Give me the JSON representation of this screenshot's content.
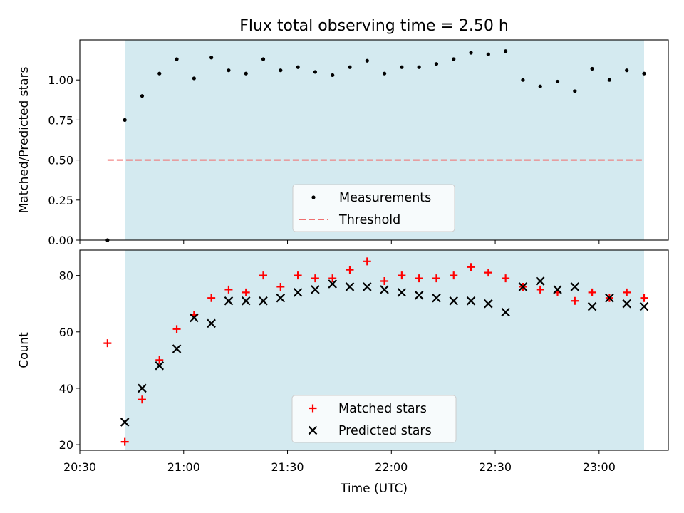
{
  "chart_data": {
    "title": "Flux total observing time = 2.50 h",
    "xlabel": "Time (UTC)",
    "x_ticks": [
      "20:30",
      "21:00",
      "21:30",
      "22:00",
      "22:30",
      "23:00"
    ],
    "x_range_minutes": [
      0,
      170
    ],
    "observing_window_minutes": [
      13,
      163
    ],
    "shade_color": "#d4eaf0",
    "panels": [
      {
        "type": "scatter",
        "ylabel": "Matched/Predicted stars",
        "ylim": [
          0.0,
          1.25
        ],
        "y_ticks": [
          "0.00",
          "0.25",
          "0.50",
          "0.75",
          "1.00"
        ],
        "y_tick_values": [
          0.0,
          0.25,
          0.5,
          0.75,
          1.0
        ],
        "legend": {
          "position": "lower center",
          "entries": [
            "Measurements",
            "Threshold"
          ]
        },
        "series": [
          {
            "name": "Measurements",
            "marker": "dot",
            "color": "#000000",
            "x": [
              8,
              13,
              18,
              23,
              28,
              33,
              38,
              43,
              48,
              53,
              58,
              63,
              68,
              73,
              78,
              83,
              88,
              93,
              98,
              103,
              108,
              113,
              118,
              123,
              128,
              133,
              138,
              143,
              148,
              153,
              158,
              163
            ],
            "y": [
              0.0,
              0.75,
              0.9,
              1.04,
              1.13,
              1.01,
              1.14,
              1.06,
              1.04,
              1.13,
              1.06,
              1.08,
              1.05,
              1.03,
              1.08,
              1.12,
              1.04,
              1.08,
              1.08,
              1.1,
              1.13,
              1.17,
              1.16,
              1.18,
              1.0,
              0.96,
              0.99,
              0.93,
              1.07,
              1.0,
              1.06,
              1.04
            ]
          },
          {
            "name": "Threshold",
            "marker": "dashed-line",
            "color": "#f07070",
            "x": [
              8,
              163
            ],
            "y": [
              0.5,
              0.5
            ]
          }
        ]
      },
      {
        "type": "scatter",
        "ylabel": "Count",
        "ylim": [
          18,
          89
        ],
        "y_ticks": [
          "20",
          "40",
          "60",
          "80"
        ],
        "y_tick_values": [
          20,
          40,
          60,
          80
        ],
        "legend": {
          "position": "lower center",
          "entries": [
            "Matched stars",
            "Predicted stars"
          ]
        },
        "series": [
          {
            "name": "Matched stars",
            "marker": "plus",
            "color": "#ff0000",
            "x": [
              8,
              13,
              18,
              23,
              28,
              33,
              38,
              43,
              48,
              53,
              58,
              63,
              68,
              73,
              78,
              83,
              88,
              93,
              98,
              103,
              108,
              113,
              118,
              123,
              128,
              133,
              138,
              143,
              148,
              153,
              158,
              163
            ],
            "y": [
              56,
              21,
              36,
              50,
              61,
              66,
              72,
              75,
              74,
              80,
              76,
              80,
              79,
              79,
              82,
              85,
              78,
              80,
              79,
              79,
              80,
              83,
              81,
              79,
              76,
              75,
              74,
              71,
              74,
              72,
              74,
              72
            ]
          },
          {
            "name": "Predicted stars",
            "marker": "x",
            "color": "#000000",
            "x": [
              13,
              18,
              23,
              28,
              33,
              38,
              43,
              48,
              53,
              58,
              63,
              68,
              73,
              78,
              83,
              88,
              93,
              98,
              103,
              108,
              113,
              118,
              123,
              128,
              133,
              138,
              143,
              148,
              153,
              158,
              163
            ],
            "y": [
              28,
              40,
              48,
              54,
              65,
              63,
              71,
              71,
              71,
              72,
              74,
              75,
              77,
              76,
              76,
              75,
              74,
              73,
              72,
              71,
              71,
              70,
              67,
              76,
              78,
              75,
              76,
              69,
              72,
              70,
              69
            ]
          }
        ]
      }
    ]
  }
}
